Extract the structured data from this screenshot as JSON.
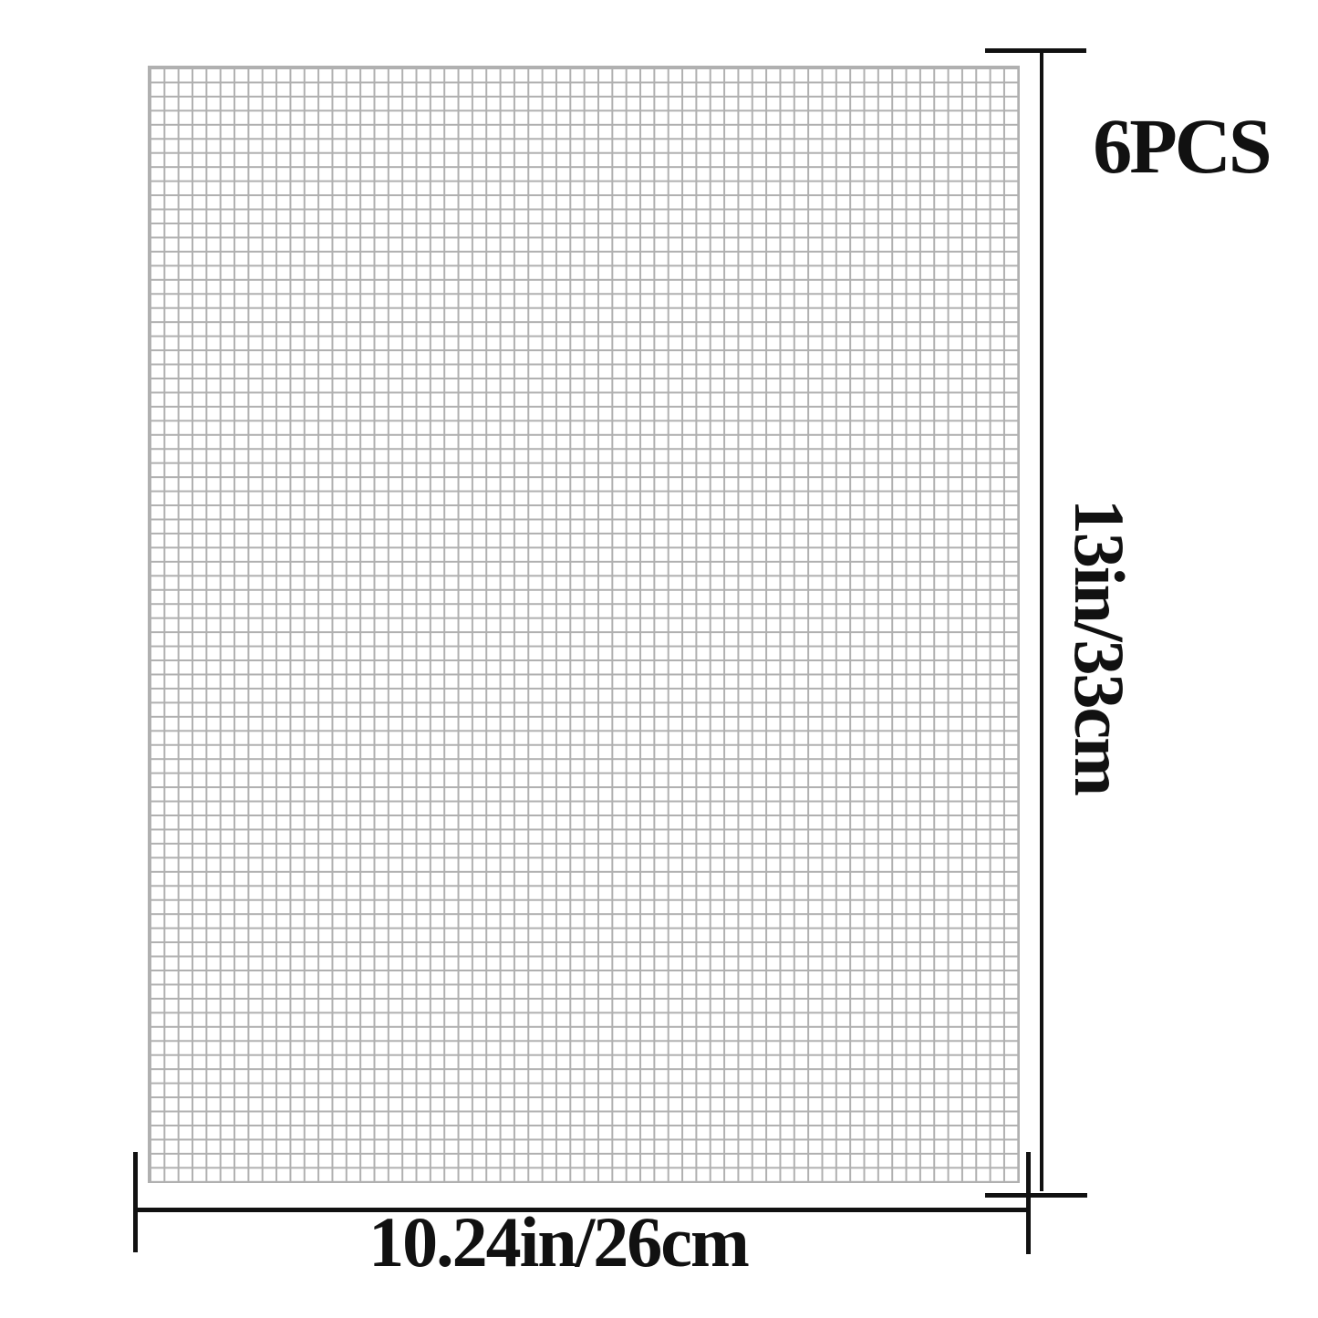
{
  "diagram": {
    "pieces_label": "6PCS",
    "height_label": "13in/33cm",
    "width_label": "10.24in/26cm",
    "mesh": {
      "columns": 62,
      "rows": 79
    },
    "colors": {
      "background": "#ffffff",
      "mesh_line": "#b0b0b0",
      "dimension_line": "#111111",
      "text": "#111111"
    }
  }
}
